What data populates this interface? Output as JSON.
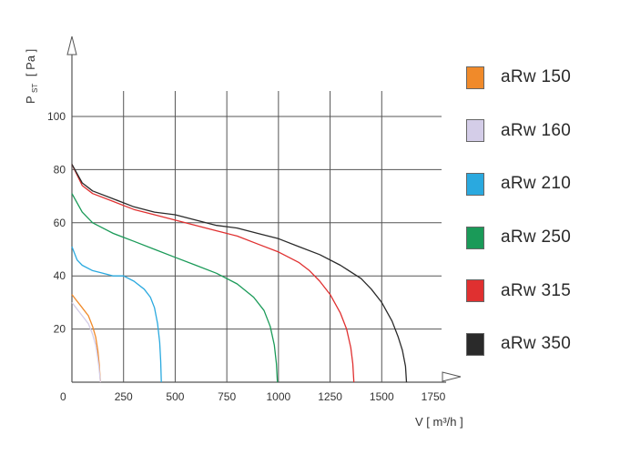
{
  "chart_data": {
    "type": "line",
    "xlabel": "V [ m³/h ]",
    "ylabel": "P",
    "ylabel_sub": "ST",
    "ylabel_unit": "[ Pa ]",
    "origin_label": "0",
    "xlim": [
      0,
      1750
    ],
    "ylim": [
      0,
      100
    ],
    "xticks": [
      250,
      500,
      750,
      1000,
      1250,
      1500,
      1750
    ],
    "yticks": [
      20,
      40,
      60,
      80,
      100
    ],
    "grid": true,
    "legend_position": "right",
    "series": [
      {
        "name": "aRw  150",
        "color": "#f08a2a",
        "points": [
          [
            0,
            33
          ],
          [
            20,
            31
          ],
          [
            40,
            29
          ],
          [
            60,
            27
          ],
          [
            80,
            25
          ],
          [
            100,
            21
          ],
          [
            115,
            17
          ],
          [
            125,
            12
          ],
          [
            132,
            7
          ],
          [
            138,
            0
          ]
        ]
      },
      {
        "name": "aRw  160",
        "color": "#d4cde8",
        "points": [
          [
            0,
            30
          ],
          [
            20,
            28
          ],
          [
            40,
            26
          ],
          [
            60,
            24
          ],
          [
            80,
            22
          ],
          [
            100,
            18
          ],
          [
            115,
            14
          ],
          [
            125,
            9
          ],
          [
            132,
            5
          ],
          [
            138,
            0
          ]
        ]
      },
      {
        "name": "aRw  210",
        "color": "#2aa9df",
        "points": [
          [
            0,
            51
          ],
          [
            25,
            46
          ],
          [
            50,
            44
          ],
          [
            100,
            42
          ],
          [
            150,
            41
          ],
          [
            200,
            40
          ],
          [
            250,
            40
          ],
          [
            300,
            38
          ],
          [
            350,
            35
          ],
          [
            380,
            32
          ],
          [
            400,
            28
          ],
          [
            415,
            22
          ],
          [
            425,
            15
          ],
          [
            430,
            8
          ],
          [
            433,
            0
          ]
        ]
      },
      {
        "name": "aRw  250",
        "color": "#1a9a58",
        "points": [
          [
            0,
            71
          ],
          [
            50,
            64
          ],
          [
            100,
            60
          ],
          [
            200,
            56
          ],
          [
            300,
            53
          ],
          [
            400,
            50
          ],
          [
            500,
            47
          ],
          [
            600,
            44
          ],
          [
            700,
            41
          ],
          [
            800,
            37
          ],
          [
            880,
            32
          ],
          [
            930,
            27
          ],
          [
            960,
            21
          ],
          [
            980,
            14
          ],
          [
            990,
            7
          ],
          [
            995,
            0
          ]
        ]
      },
      {
        "name": "aRw  315",
        "color": "#e03030",
        "points": [
          [
            0,
            82
          ],
          [
            50,
            74
          ],
          [
            100,
            71
          ],
          [
            200,
            68
          ],
          [
            300,
            65
          ],
          [
            400,
            63
          ],
          [
            500,
            61
          ],
          [
            600,
            59
          ],
          [
            700,
            57
          ],
          [
            800,
            55
          ],
          [
            900,
            52
          ],
          [
            1000,
            49
          ],
          [
            1100,
            45
          ],
          [
            1150,
            42
          ],
          [
            1200,
            38
          ],
          [
            1250,
            33
          ],
          [
            1300,
            26
          ],
          [
            1330,
            20
          ],
          [
            1350,
            13
          ],
          [
            1360,
            7
          ],
          [
            1365,
            0
          ]
        ]
      },
      {
        "name": "aRw  350",
        "color": "#2a2a2a",
        "points": [
          [
            0,
            82
          ],
          [
            50,
            75
          ],
          [
            100,
            72
          ],
          [
            200,
            69
          ],
          [
            300,
            66
          ],
          [
            400,
            64
          ],
          [
            500,
            63
          ],
          [
            600,
            61
          ],
          [
            700,
            59
          ],
          [
            800,
            58
          ],
          [
            900,
            56
          ],
          [
            1000,
            54
          ],
          [
            1100,
            51
          ],
          [
            1200,
            48
          ],
          [
            1300,
            44
          ],
          [
            1400,
            39
          ],
          [
            1450,
            35
          ],
          [
            1500,
            30
          ],
          [
            1550,
            23
          ],
          [
            1580,
            17
          ],
          [
            1600,
            12
          ],
          [
            1615,
            6
          ],
          [
            1620,
            0
          ]
        ]
      }
    ]
  }
}
